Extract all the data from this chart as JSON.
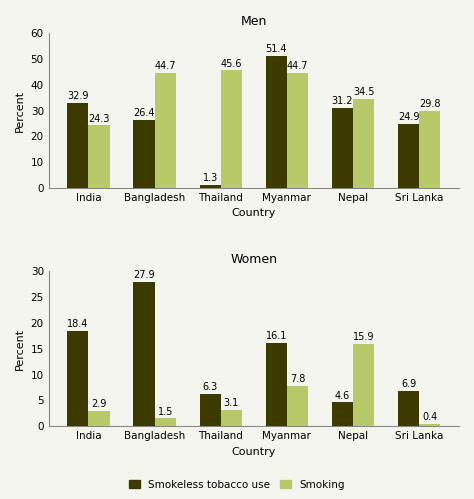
{
  "categories": [
    "India",
    "Bangladesh",
    "Thailand",
    "Myanmar",
    "Nepal",
    "Sri Lanka"
  ],
  "men": {
    "smokeless": [
      32.9,
      26.4,
      1.3,
      51.4,
      31.2,
      24.9
    ],
    "smoking": [
      24.3,
      44.7,
      45.6,
      44.7,
      34.5,
      29.8
    ]
  },
  "women": {
    "smokeless": [
      18.4,
      27.9,
      6.3,
      16.1,
      4.6,
      6.9
    ],
    "smoking": [
      2.9,
      1.5,
      3.1,
      7.8,
      15.9,
      0.4
    ]
  },
  "color_smokeless": "#3b3b00",
  "color_smoking": "#b8c96a",
  "men_ylim": [
    0,
    60
  ],
  "women_ylim": [
    0,
    30
  ],
  "men_yticks": [
    0,
    10,
    20,
    30,
    40,
    50,
    60
  ],
  "women_yticks": [
    0,
    5,
    10,
    15,
    20,
    25,
    30
  ],
  "xlabel": "Country",
  "ylabel": "Percent",
  "men_title": "Men",
  "women_title": "Women",
  "legend_smokeless": "Smokeless tobacco use",
  "legend_smoking": "Smoking",
  "bar_width": 0.32,
  "label_fontsize": 7.0,
  "title_fontsize": 9,
  "axis_fontsize": 8,
  "tick_fontsize": 7.5,
  "legend_fontsize": 7.5,
  "bg_color": "#f5f5f0"
}
